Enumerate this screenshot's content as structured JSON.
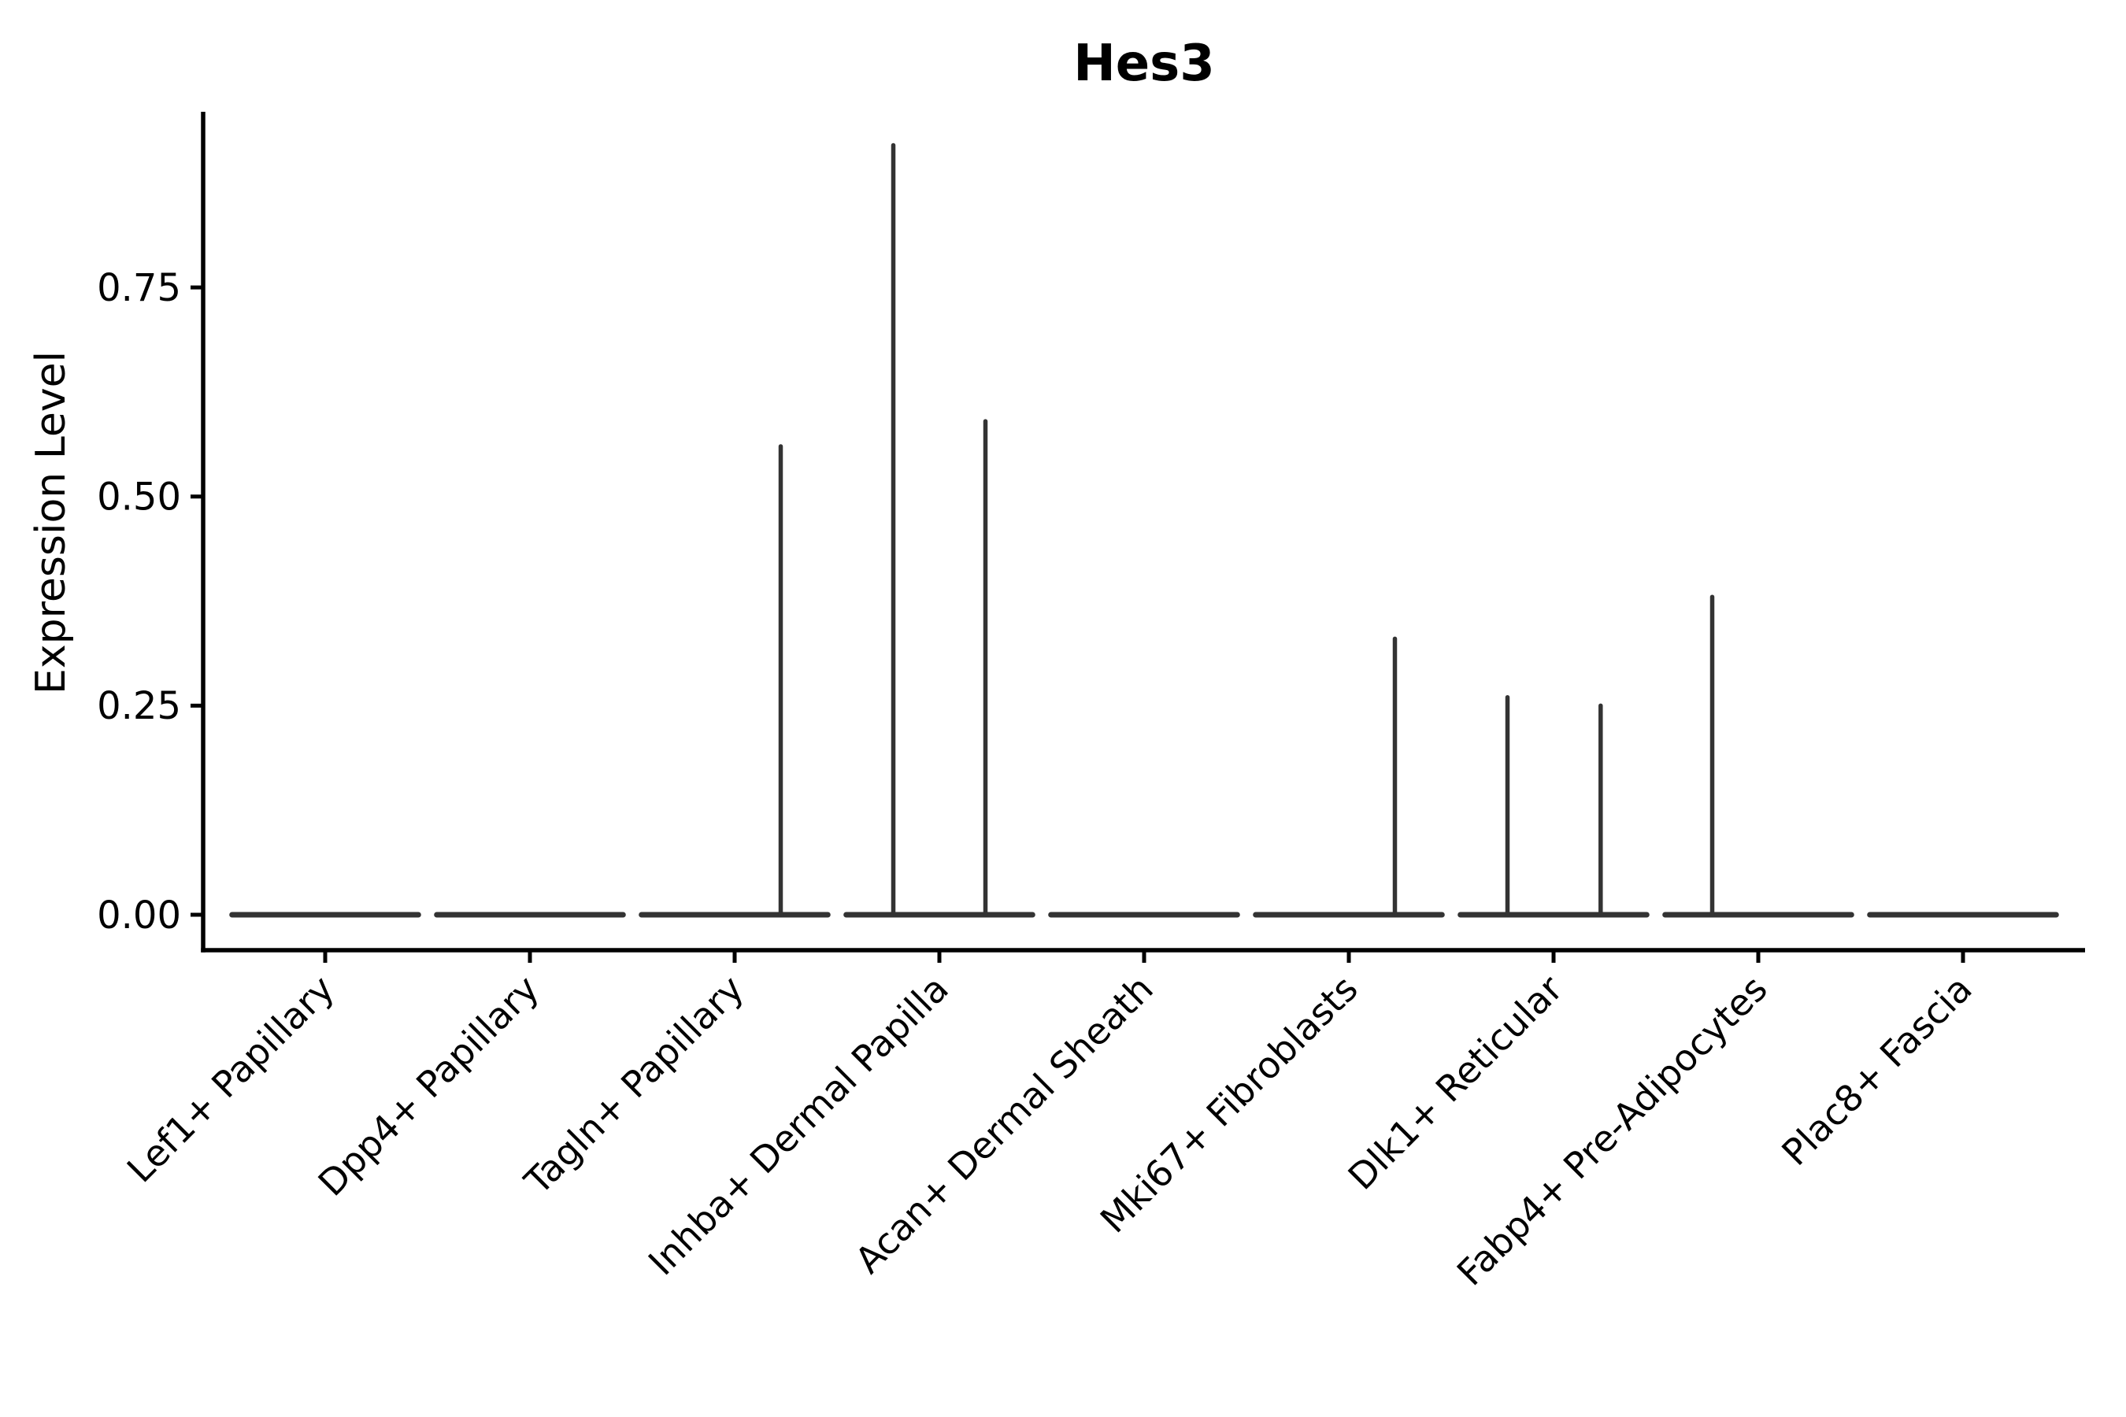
{
  "figure": {
    "background": "#ffffff"
  },
  "chart_data": {
    "type": "violin",
    "title": "Hes3",
    "xlabel": "",
    "ylabel": "Expression Level",
    "grid": false,
    "legend": null,
    "ylim": [
      -0.044,
      0.96
    ],
    "ytick_values": [
      0,
      0.25,
      0.5,
      0.75
    ],
    "ytick_labels": [
      "0.00",
      "0.25",
      "0.50",
      "0.75"
    ],
    "categories": [
      "Lef1+ Papillary",
      "Dpp4+ Papillary",
      "Tagln+ Papillary",
      "Inhba+ Dermal Papilla",
      "Acan+ Dermal Sheath",
      "Mki67+ Fibroblasts",
      "Dlk1+ Reticular",
      "Fabp4+ Pre-Adipocytes",
      "Plac8+ Fascia"
    ],
    "series": [
      {
        "name": "Lef1+ Papillary",
        "baseline_value": 0,
        "spikes": []
      },
      {
        "name": "Dpp4+ Papillary",
        "baseline_value": 0,
        "spikes": []
      },
      {
        "name": "Tagln+ Papillary",
        "baseline_value": 0,
        "spikes": [
          {
            "offset": 0.225,
            "value": 0.56
          }
        ]
      },
      {
        "name": "Inhba+ Dermal Papilla",
        "baseline_value": 0,
        "spikes": [
          {
            "offset": -0.225,
            "value": 0.92
          },
          {
            "offset": 0.225,
            "value": 0.59
          }
        ]
      },
      {
        "name": "Acan+ Dermal Sheath",
        "baseline_value": 0,
        "spikes": []
      },
      {
        "name": "Mki67+ Fibroblasts",
        "baseline_value": 0,
        "spikes": [
          {
            "offset": 0.225,
            "value": 0.33
          }
        ]
      },
      {
        "name": "Dlk1+ Reticular",
        "baseline_value": 0,
        "spikes": [
          {
            "offset": -0.225,
            "value": 0.26
          },
          {
            "offset": 0.23,
            "value": 0.25
          }
        ]
      },
      {
        "name": "Fabp4+ Pre-Adipocytes",
        "baseline_value": 0,
        "spikes": [
          {
            "offset": -0.225,
            "value": 0.38
          }
        ]
      },
      {
        "name": "Plac8+ Fascia",
        "baseline_value": 0,
        "spikes": []
      }
    ],
    "violin_half_width_fraction": 0.455,
    "colors": {
      "violin": "#333333",
      "axis": "#000000",
      "text": "#000000"
    }
  }
}
